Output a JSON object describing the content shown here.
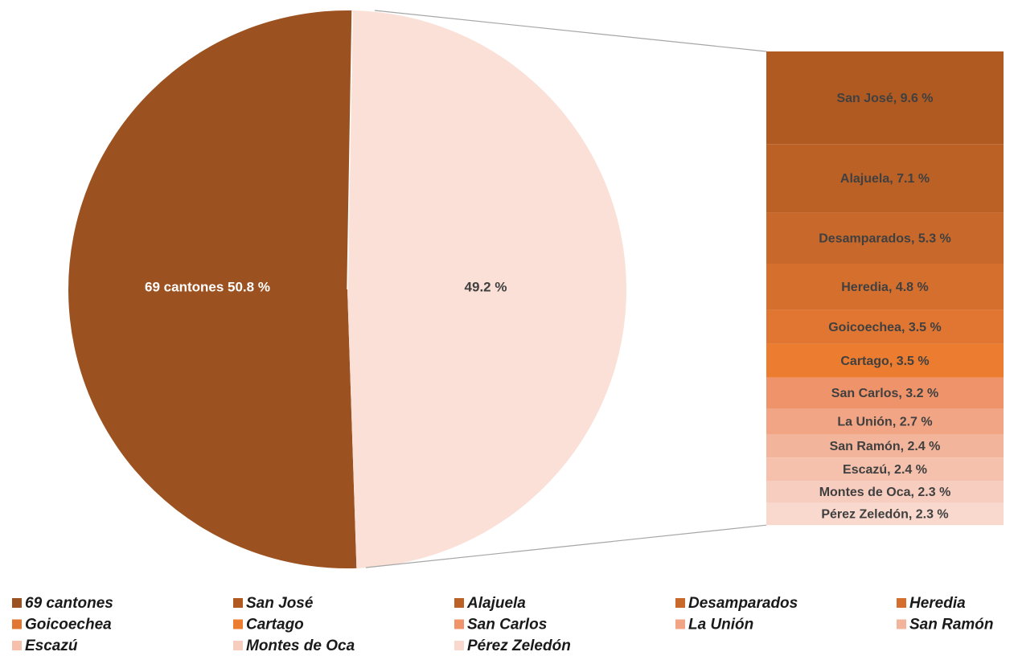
{
  "chart_data": {
    "type": "pie",
    "categories": [
      "69 cantones",
      "San José",
      "Alajuela",
      "Desamparados",
      "Heredia",
      "Goicoechea",
      "Cartago",
      "San Carlos",
      "La Unión",
      "San Ramón",
      "Escazú",
      "Montes de Oca",
      "Pérez Zeledón"
    ],
    "values": [
      50.8,
      9.6,
      7.1,
      5.3,
      4.8,
      3.5,
      3.5,
      3.2,
      2.7,
      2.4,
      2.4,
      2.3,
      2.3
    ],
    "value_labels": [
      "69 cantones 50.8 %",
      "San José, 9.6 %",
      "Alajuela, 7.1 %",
      "Desamparados, 5.3 %",
      "Heredia, 4.8 %",
      "Goicoechea, 3.5 %",
      "Cartago, 3.5 %",
      "San Carlos, 3.2 %",
      "La Unión, 2.7 %",
      "San Ramón, 2.4 %",
      "Escazú, 2.4 %",
      "Montes de Oca, 2.3 %",
      "Pérez Zeledón, 2.3 %"
    ],
    "colors": [
      "#9c5220",
      "#b05a22",
      "#bc6126",
      "#c8682a",
      "#d56f2e",
      "#e07632",
      "#ec7c30",
      "#ef946a",
      "#f1a584",
      "#f3b49c",
      "#f5c1ad",
      "#f7cdbf",
      "#f9d9ce"
    ],
    "other_value": 49.2,
    "other_value_label": "49.2 %",
    "other_color": "#fae0d7"
  }
}
